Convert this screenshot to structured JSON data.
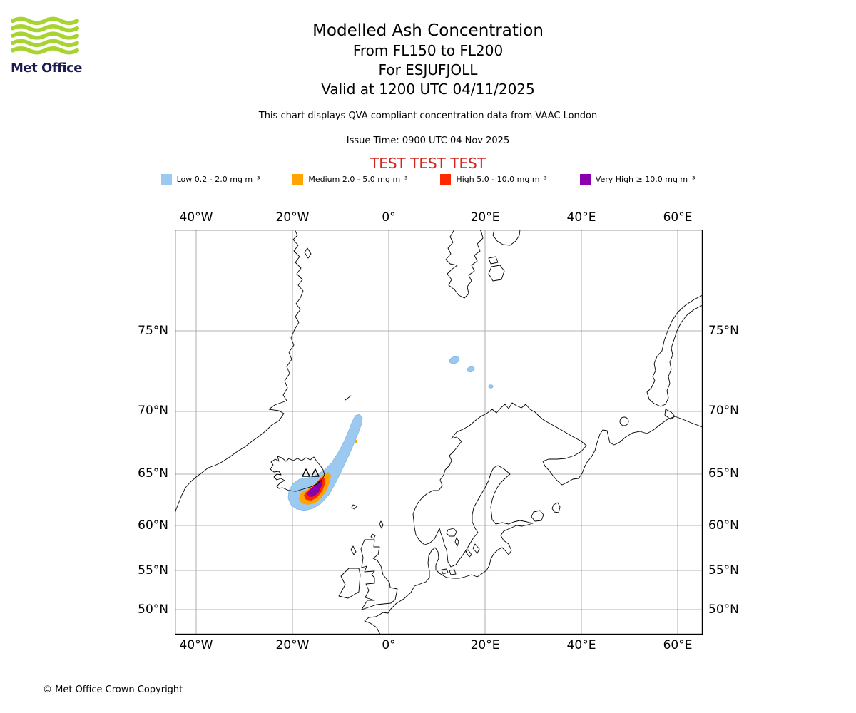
{
  "header": {
    "logo_text": "Met Office",
    "title": "Modelled Ash Concentration",
    "subtitle_flight_level": "From FL150 to FL200",
    "subtitle_volcano": "For ESJUFJOLL",
    "subtitle_valid": "Valid at 1200 UTC 04/11/2025",
    "qva_note": "This chart displays QVA compliant concentration data from VAAC London",
    "issue_time": "Issue Time: 0900 UTC 04 Nov 2025",
    "test_banner": "TEST TEST TEST"
  },
  "legend": {
    "items": [
      {
        "key": "low",
        "label": "Low 0.2 - 2.0 mg m⁻³",
        "color": "#9cc9ef"
      },
      {
        "key": "medium",
        "label": "Medium 2.0 - 5.0 mg m⁻³",
        "color": "#ffa400"
      },
      {
        "key": "high",
        "label": "High 5.0 - 10.0 mg m⁻³",
        "color": "#ff2800"
      },
      {
        "key": "very-high",
        "label": "Very High ≥ 10.0 mg m⁻³",
        "color": "#8a00ad"
      }
    ]
  },
  "map": {
    "lon_labels": [
      "40°W",
      "20°W",
      "0°",
      "20°E",
      "40°E",
      "60°E"
    ],
    "lat_labels": [
      "75°N",
      "70°N",
      "65°N",
      "60°N",
      "55°N",
      "50°N"
    ],
    "colors": {
      "ash_low": "#9cc9ef",
      "ash_low_edge": "#85b8e2",
      "ash_medium": "#ffa400",
      "ash_high": "#ff2800",
      "ash_very_high": "#8a00ad"
    }
  },
  "footer": {
    "copyright": "© Met Office Crown Copyright"
  },
  "accent": {
    "test_red": "#d0241c",
    "logo_green": "#a8d431",
    "logo_navy": "#1b1b4f"
  }
}
